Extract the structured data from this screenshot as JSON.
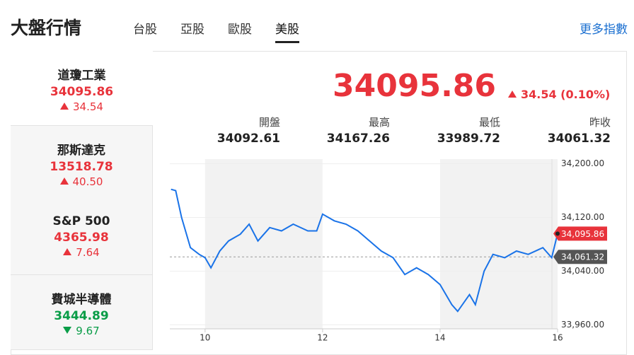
{
  "header": {
    "title": "大盤行情",
    "tabs": [
      "台股",
      "亞股",
      "歐股",
      "美股"
    ],
    "active_tab": 3,
    "more_link": "更多指數"
  },
  "indices": [
    {
      "name": "道瓊工業",
      "value": "34095.86",
      "change": "34.54",
      "direction": "up",
      "selected": true
    },
    {
      "name": "那斯達克",
      "value": "13518.78",
      "change": "40.50",
      "direction": "up",
      "selected": false
    },
    {
      "name": "S&P 500",
      "value": "4365.98",
      "change": "7.64",
      "direction": "up",
      "selected": false
    },
    {
      "name": "費城半導體",
      "value": "3444.89",
      "change": "9.67",
      "direction": "down",
      "selected": false
    }
  ],
  "quote": {
    "value": "34095.86",
    "change": "34.54 (0.10%)",
    "direction": "up",
    "stats": [
      {
        "label": "開盤",
        "value": "34092.61"
      },
      {
        "label": "最高",
        "value": "34167.26"
      },
      {
        "label": "最低",
        "value": "33989.72"
      },
      {
        "label": "昨收",
        "value": "34061.32"
      }
    ]
  },
  "chart_data": {
    "type": "line",
    "color": "#1a73e8",
    "x": [
      9.42,
      9.5,
      9.6,
      9.75,
      9.9,
      10.0,
      10.1,
      10.25,
      10.4,
      10.6,
      10.75,
      10.9,
      11.1,
      11.3,
      11.5,
      11.75,
      11.9,
      12.0,
      12.2,
      12.4,
      12.6,
      12.8,
      13.0,
      13.2,
      13.4,
      13.6,
      13.8,
      14.0,
      14.2,
      14.3,
      14.5,
      14.6,
      14.75,
      14.9,
      15.1,
      15.3,
      15.5,
      15.75,
      15.9,
      16.0
    ],
    "values": [
      34162,
      34160,
      34120,
      34075,
      34065,
      34060,
      34045,
      34070,
      34085,
      34095,
      34110,
      34085,
      34105,
      34100,
      34110,
      34100,
      34100,
      34125,
      34115,
      34110,
      34100,
      34085,
      34070,
      34060,
      34035,
      34045,
      34035,
      34020,
      33990,
      33980,
      34005,
      33990,
      34040,
      34065,
      34060,
      34070,
      34065,
      34075,
      34060,
      34095.86
    ],
    "xlim": [
      9.4,
      16
    ],
    "ylim": [
      33954,
      34207
    ],
    "xticks": [
      10,
      12,
      14,
      16
    ],
    "yticks": [
      {
        "value": 33960,
        "label": "33,960.00"
      },
      {
        "value": 34040,
        "label": "34,040.00"
      },
      {
        "value": 34120,
        "label": "34,120.00"
      },
      {
        "value": 34200,
        "label": "34,200.00"
      }
    ],
    "reference": {
      "value": 34061.32,
      "label": "34,061.32"
    },
    "current": {
      "value": 34095.86,
      "label": "34,095.86"
    }
  }
}
